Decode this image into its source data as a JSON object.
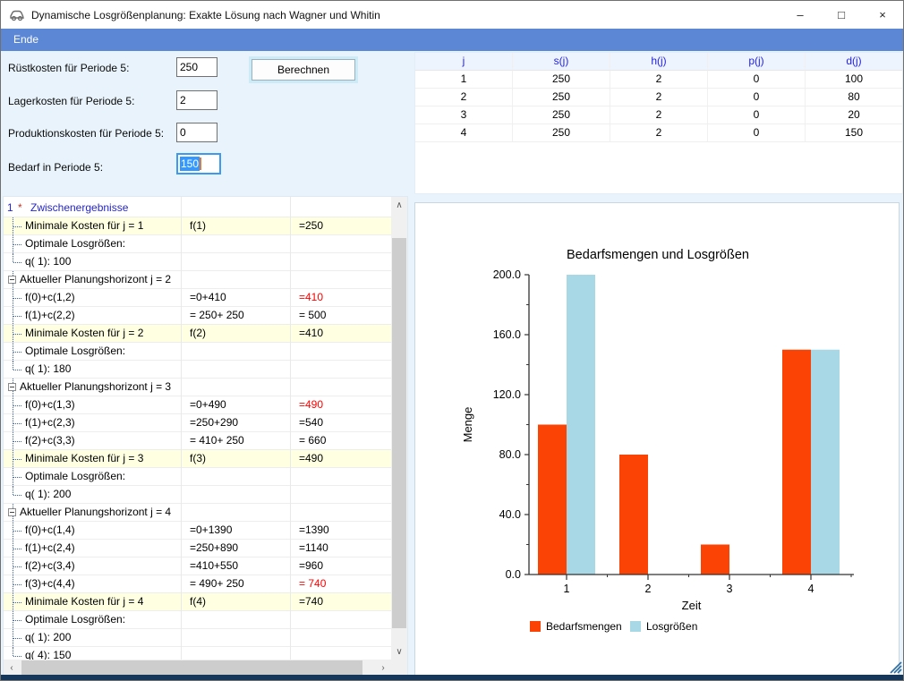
{
  "window": {
    "title": "Dynamische Losgrößenplanung: Exakte Lösung nach Wagner und Whitin",
    "menu_items": [
      {
        "label": "Ende"
      }
    ],
    "controls": {
      "minimize": "–",
      "maximize": "□",
      "close": "×"
    }
  },
  "inputs": {
    "fields": [
      {
        "label": "Rüstkosten für Periode 5:",
        "value": "250"
      },
      {
        "label": "Lagerkosten für Periode 5:",
        "value": "2"
      },
      {
        "label": "Produktionskosten für Periode 5:",
        "value": "0"
      },
      {
        "label": "Bedarf in Periode 5:",
        "value": "150",
        "selected": true
      }
    ],
    "button_label": "Berechnen"
  },
  "param_table": {
    "headers": [
      "j",
      "s(j)",
      "h(j)",
      "p(j)",
      "d(j)"
    ],
    "rows": [
      [
        "1",
        "250",
        "2",
        "0",
        "100"
      ],
      [
        "2",
        "250",
        "2",
        "0",
        "80"
      ],
      [
        "3",
        "250",
        "2",
        "0",
        "20"
      ],
      [
        "4",
        "250",
        "2",
        "0",
        "150"
      ]
    ]
  },
  "tree": {
    "root": {
      "num": "1",
      "star": "*",
      "label": "Zwischenergebnisse"
    },
    "rows": [
      {
        "k": "c",
        "a": "Minimale Kosten für j = 1",
        "b": "f(1)",
        "c": "=250",
        "hl": true
      },
      {
        "k": "c",
        "a": "Optimale Losgrößen:",
        "b": "",
        "c": ""
      },
      {
        "k": "c",
        "a": "q( 1):  100",
        "b": "",
        "c": "",
        "last": true
      },
      {
        "k": "n",
        "a": "Aktueller Planungshorizont j =  2",
        "b": "",
        "c": ""
      },
      {
        "k": "c",
        "a": "f(0)+c(1,2)",
        "b": "=0+410",
        "c": "=410",
        "red": true
      },
      {
        "k": "c",
        "a": "f(1)+c(2,2)",
        "b": "= 250+ 250",
        "c": "= 500"
      },
      {
        "k": "c",
        "a": "Minimale Kosten für j = 2",
        "b": "f(2)",
        "c": "=410",
        "hl": true
      },
      {
        "k": "c",
        "a": "Optimale Losgrößen:",
        "b": "",
        "c": ""
      },
      {
        "k": "c",
        "a": "q( 1):  180",
        "b": "",
        "c": "",
        "last": true
      },
      {
        "k": "n",
        "a": "Aktueller Planungshorizont j =  3",
        "b": "",
        "c": ""
      },
      {
        "k": "c",
        "a": "f(0)+c(1,3)",
        "b": "=0+490",
        "c": "=490",
        "red": true
      },
      {
        "k": "c",
        "a": "f(1)+c(2,3)",
        "b": "=250+290",
        "c": "=540"
      },
      {
        "k": "c",
        "a": "f(2)+c(3,3)",
        "b": "= 410+ 250",
        "c": "= 660"
      },
      {
        "k": "c",
        "a": "Minimale Kosten für j = 3",
        "b": "f(3)",
        "c": "=490",
        "hl": true
      },
      {
        "k": "c",
        "a": "Optimale Losgrößen:",
        "b": "",
        "c": ""
      },
      {
        "k": "c",
        "a": "q( 1):  200",
        "b": "",
        "c": "",
        "last": true
      },
      {
        "k": "n",
        "a": "Aktueller Planungshorizont j =  4",
        "b": "",
        "c": ""
      },
      {
        "k": "c",
        "a": "f(0)+c(1,4)",
        "b": "=0+1390",
        "c": "=1390"
      },
      {
        "k": "c",
        "a": "f(1)+c(2,4)",
        "b": "=250+890",
        "c": "=1140"
      },
      {
        "k": "c",
        "a": "f(2)+c(3,4)",
        "b": "=410+550",
        "c": "=960"
      },
      {
        "k": "c",
        "a": "f(3)+c(4,4)",
        "b": "= 490+ 250",
        "c": "= 740",
        "red": true
      },
      {
        "k": "c",
        "a": "Minimale Kosten für j = 4",
        "b": "f(4)",
        "c": "=740",
        "hl": true
      },
      {
        "k": "c",
        "a": "Optimale Losgrößen:",
        "b": "",
        "c": ""
      },
      {
        "k": "c",
        "a": "q( 1):  200",
        "b": "",
        "c": ""
      },
      {
        "k": "c",
        "a": "q( 4):  150",
        "b": "",
        "c": "",
        "last": true
      }
    ]
  },
  "chart_data": {
    "type": "bar",
    "title": "Bedarfsmengen und Losgrößen",
    "xlabel": "Zeit",
    "ylabel": "Menge",
    "categories": [
      "1",
      "2",
      "3",
      "4"
    ],
    "series": [
      {
        "name": "Bedarfsmengen",
        "color": "#fc4306",
        "values": [
          100,
          80,
          20,
          150
        ]
      },
      {
        "name": "Losgrößen",
        "color": "#a8d7e5",
        "values": [
          200,
          0,
          0,
          150
        ]
      }
    ],
    "ylim": [
      0,
      200
    ],
    "ytick_step": 40,
    "ytick_labels": [
      "0.0",
      "40.0",
      "80.0",
      "120.0",
      "160.0",
      "200.0"
    ],
    "grid": false,
    "legend_position": "bottom"
  },
  "scroll_icons": {
    "up": "∧",
    "down": "∨",
    "left": "‹",
    "right": "›"
  },
  "colors": {
    "menubar": "#5b87d5",
    "form_bg": "#e8f3fb",
    "highlight_row": "#ffffe1",
    "result_red": "#ff0000",
    "table_header_blue": "#2222ee",
    "bar_orange": "#fc4306",
    "bar_blue": "#a8d7e5",
    "selection_blue": "#3399ff",
    "tree_line": "#3a5fa0"
  }
}
